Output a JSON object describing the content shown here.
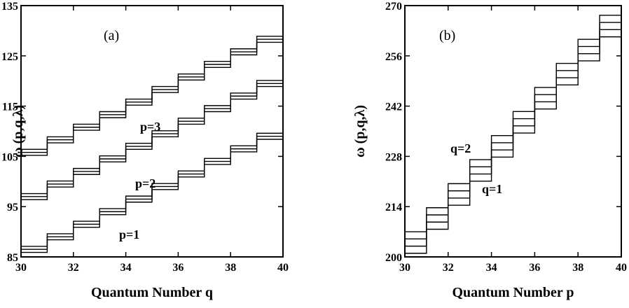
{
  "chart_data": [
    {
      "panel_label": "(a)",
      "type": "line",
      "step_style": true,
      "xlabel": "Quantum Number q",
      "ylabel": "ω (p,q,λ)",
      "xlim": [
        30,
        40
      ],
      "ylim": [
        85,
        135
      ],
      "xticks": [
        30,
        32,
        34,
        36,
        38,
        40
      ],
      "yticks": [
        85,
        95,
        105,
        115,
        125,
        135
      ],
      "grid": false,
      "lines_per_group": 3,
      "line_spacing": 0.6,
      "series": [
        {
          "name": "p=1",
          "x": [
            30,
            31,
            32,
            33,
            34,
            35,
            36,
            37,
            38,
            39,
            40
          ],
          "values": [
            86.5,
            89,
            91.5,
            94,
            96.5,
            99,
            101.5,
            104,
            106.5,
            109,
            110
          ]
        },
        {
          "name": "p=2",
          "x": [
            30,
            31,
            32,
            33,
            34,
            35,
            36,
            37,
            38,
            39,
            40
          ],
          "values": [
            97,
            99.5,
            102,
            104.5,
            107,
            109.5,
            112,
            114.5,
            117,
            119.5,
            121
          ]
        },
        {
          "name": "p=3",
          "x": [
            30,
            31,
            32,
            33,
            34,
            35,
            36,
            37,
            38,
            39,
            40
          ],
          "values": [
            105.8,
            108.3,
            110.8,
            113.3,
            115.8,
            118.3,
            120.8,
            123.3,
            125.8,
            128.3,
            130
          ]
        }
      ]
    },
    {
      "panel_label": "(b)",
      "type": "line",
      "step_style": true,
      "xlabel": "Quantum Number p",
      "ylabel": "ω (p,q,λ)",
      "xlim": [
        30,
        40
      ],
      "ylim": [
        200,
        270
      ],
      "xticks": [
        30,
        32,
        34,
        36,
        38,
        40
      ],
      "yticks": [
        200,
        214,
        228,
        242,
        256,
        270
      ],
      "grid": false,
      "lines_per_group": 4,
      "line_spacing": 2.0,
      "series": [
        {
          "name": "q=1",
          "x": [
            30,
            31,
            32,
            33,
            34,
            35,
            36,
            37,
            38,
            39,
            40
          ],
          "values": [
            201,
            207.7,
            214.4,
            221.1,
            227.8,
            234.5,
            241.2,
            247.9,
            254.6,
            261.3,
            263
          ]
        },
        {
          "name": "q=2",
          "x": [
            30,
            31,
            32,
            33,
            34,
            35,
            36,
            37,
            38,
            39,
            40
          ],
          "values": [
            203,
            209.7,
            216.4,
            223.1,
            229.8,
            236.5,
            243.2,
            249.9,
            256.6,
            263.3,
            265
          ]
        }
      ],
      "unlabeled_lines": [
        {
          "x": [
            30,
            31,
            32,
            33,
            34,
            35,
            36,
            37,
            38,
            39,
            40
          ],
          "values": [
            205,
            211.7,
            218.4,
            225.1,
            231.8,
            238.5,
            245.2,
            251.9,
            258.6,
            265.3,
            267
          ]
        },
        {
          "x": [
            30,
            31,
            32,
            33,
            34,
            35,
            36,
            37,
            38,
            39,
            40
          ],
          "values": [
            207,
            213.7,
            220.4,
            227.1,
            233.8,
            240.5,
            247.2,
            253.9,
            260.6,
            267.3,
            269
          ]
        }
      ]
    }
  ]
}
